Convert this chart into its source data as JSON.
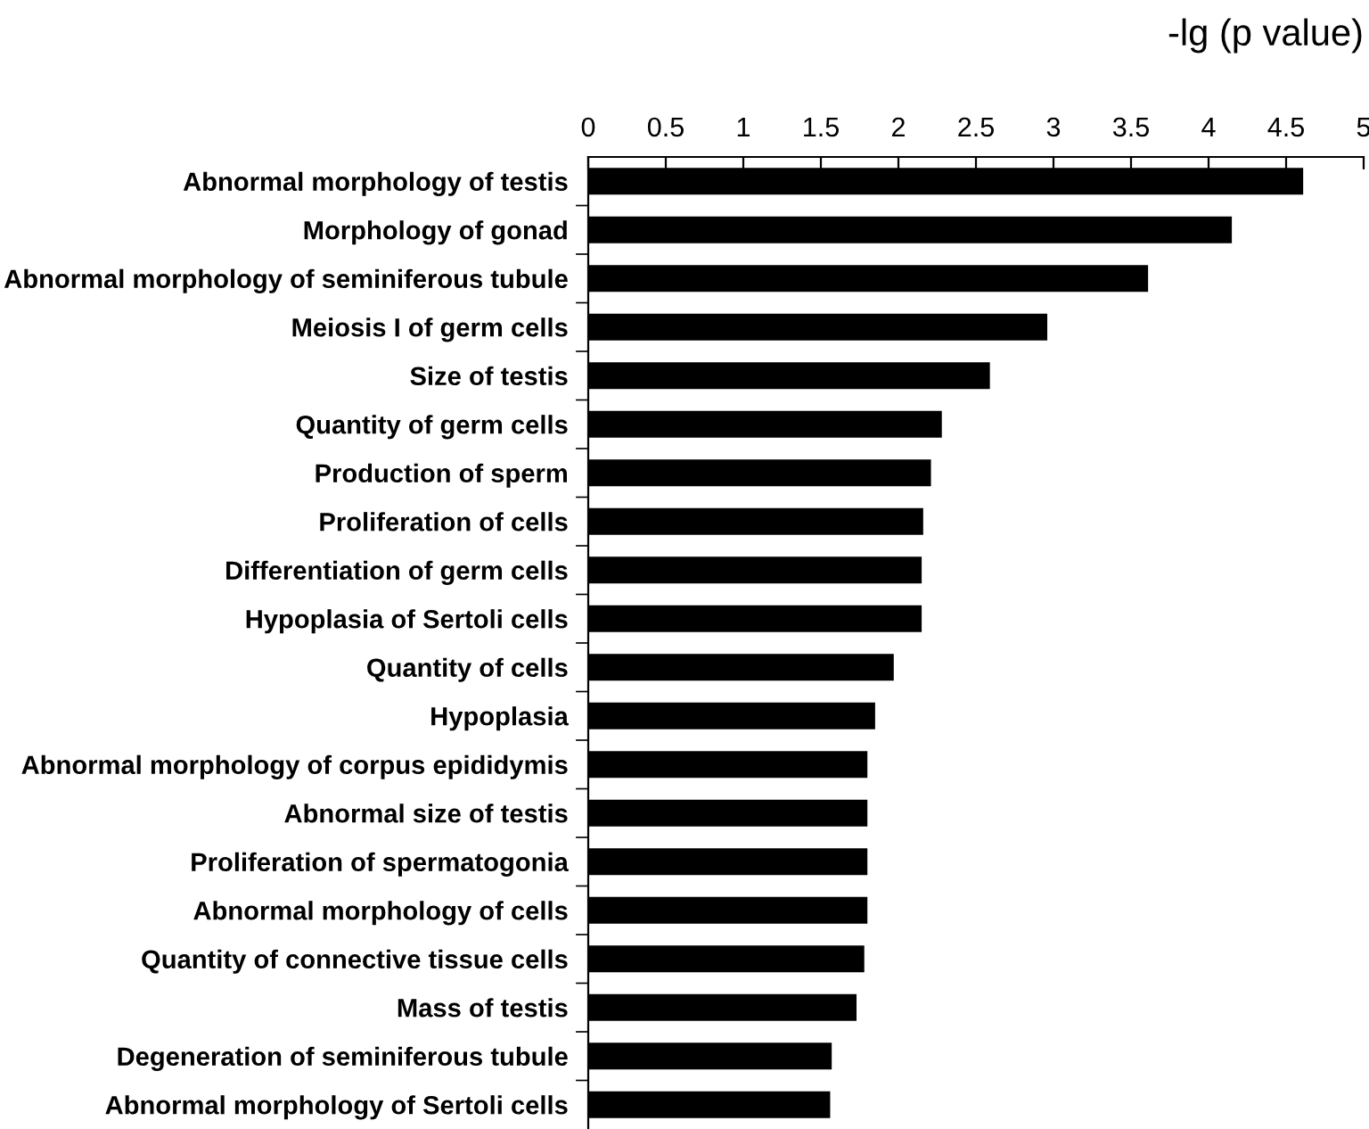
{
  "chart_data": {
    "type": "bar",
    "orientation": "horizontal",
    "xlabel": "-lg (p value)",
    "categories": [
      "Abnormal morphology of testis",
      "Morphology of gonad",
      "Abnormal morphology of seminiferous tubule",
      "Meiosis I of germ cells",
      "Size of testis",
      "Quantity of germ cells",
      "Production of sperm",
      "Proliferation of cells",
      "Differentiation of germ cells",
      "Hypoplasia of Sertoli cells",
      "Quantity of cells",
      "Hypoplasia",
      "Abnormal morphology of corpus epididymis",
      "Abnormal size of testis",
      "Proliferation of spermatogonia",
      "Abnormal morphology of cells",
      "Quantity of connective tissue cells",
      "Mass of testis",
      "Degeneration of seminiferous tubule",
      "Abnormal morphology of Sertoli cells"
    ],
    "values": [
      4.61,
      4.15,
      3.61,
      2.96,
      2.59,
      2.28,
      2.21,
      2.16,
      2.15,
      2.15,
      1.97,
      1.85,
      1.8,
      1.8,
      1.8,
      1.8,
      1.78,
      1.73,
      1.57,
      1.56
    ],
    "color": "#000000",
    "xlim": [
      0,
      5
    ],
    "xticks": [
      0,
      0.5,
      1,
      1.5,
      2,
      2.5,
      3,
      3.5,
      4,
      4.5,
      5
    ],
    "grid": false,
    "legend": false
  }
}
